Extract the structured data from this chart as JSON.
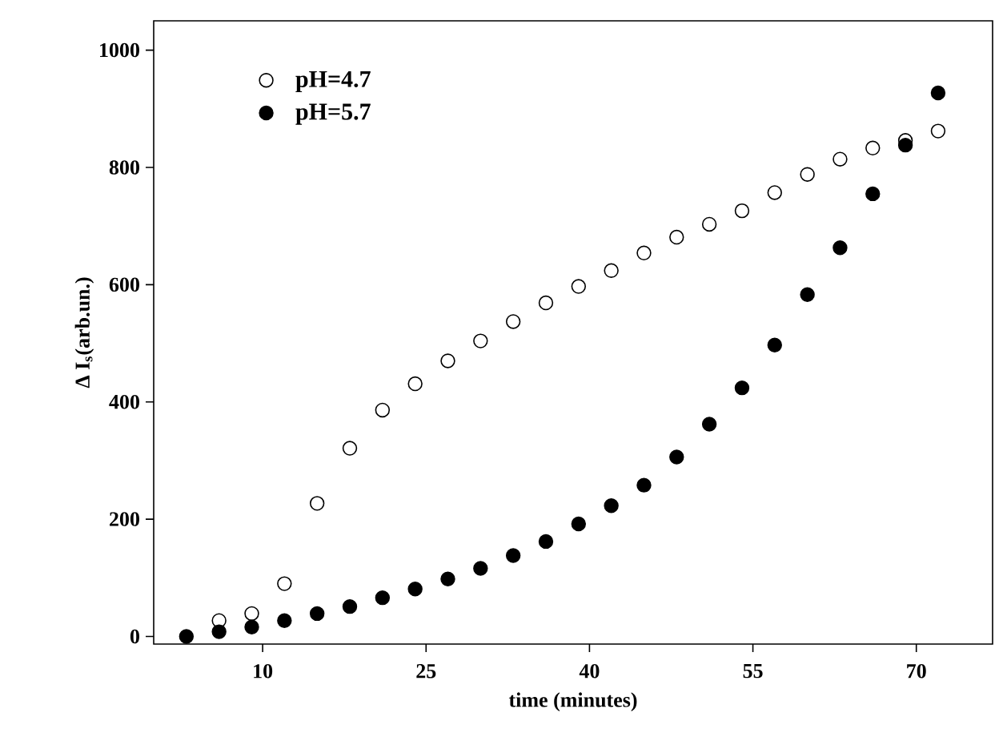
{
  "chart_data": {
    "type": "scatter",
    "xlabel": "time (minutes)",
    "ylabel": "Δ I$_{s}$(arb.un.)",
    "xlim": [
      0,
      77
    ],
    "ylim": [
      -13,
      1050
    ],
    "xticks": [
      10,
      25,
      40,
      55,
      70
    ],
    "yticks": [
      0,
      200,
      400,
      600,
      800,
      1000
    ],
    "marker": "circle",
    "legend": "top left",
    "grid": false,
    "series": [
      {
        "name": "pH=4.7",
        "color": "#ffffff",
        "x": [
          6,
          9,
          12,
          15,
          18,
          21,
          24,
          27,
          30,
          33,
          36,
          39,
          42,
          45,
          48,
          51,
          54,
          57,
          60,
          63,
          66,
          69,
          72
        ],
        "values": [
          27,
          39,
          90,
          227,
          321,
          386,
          431,
          470,
          504,
          537,
          569,
          597,
          624,
          654,
          681,
          703,
          726,
          757,
          788,
          814,
          833,
          846,
          862
        ]
      },
      {
        "name": "pH=5.7",
        "color": "#000000",
        "x": [
          3,
          6,
          9,
          12,
          15,
          18,
          21,
          24,
          27,
          30,
          33,
          36,
          39,
          42,
          45,
          48,
          51,
          54,
          57,
          60,
          63,
          66,
          69,
          72
        ],
        "values": [
          0,
          8,
          16,
          27,
          39,
          51,
          66,
          81,
          98,
          116,
          138,
          162,
          192,
          223,
          258,
          306,
          362,
          424,
          497,
          583,
          663,
          755,
          838,
          927
        ]
      }
    ]
  }
}
